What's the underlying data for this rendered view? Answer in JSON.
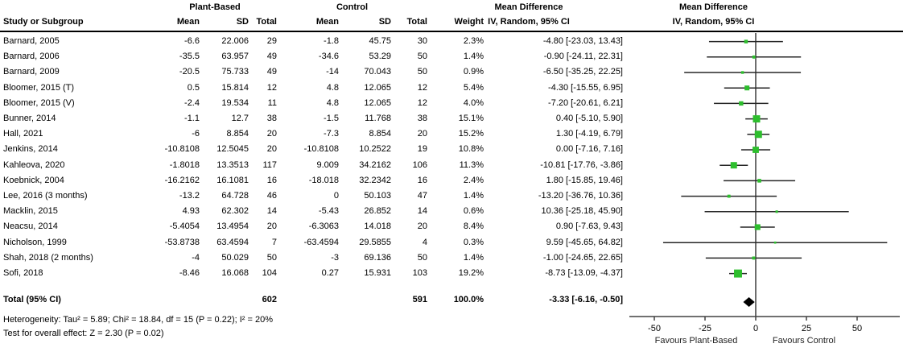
{
  "table": {
    "group_headers": {
      "plant_based": "Plant-Based",
      "control": "Control",
      "mean_diff_col": "Mean Difference",
      "mean_diff_plot": "Mean Difference"
    },
    "col_headers": {
      "study": "Study or Subgroup",
      "mean1": "Mean",
      "sd1": "SD",
      "total1": "Total",
      "mean2": "Mean",
      "sd2": "SD",
      "total2": "Total",
      "weight": "Weight",
      "iv_random_col": "IV, Random, 95% CI",
      "iv_random_plot": "IV, Random, 95% CI"
    },
    "rows": [
      {
        "study": "Barnard, 2005",
        "mean1": "-6.6",
        "sd1": "22.006",
        "total1": "29",
        "mean2": "-1.8",
        "sd2": "45.75",
        "total2": "30",
        "weight": "2.3%",
        "ci": "-4.80 [-23.03, 13.43]"
      },
      {
        "study": "Barnard, 2006",
        "mean1": "-35.5",
        "sd1": "63.957",
        "total1": "49",
        "mean2": "-34.6",
        "sd2": "53.29",
        "total2": "50",
        "weight": "1.4%",
        "ci": "-0.90 [-24.11, 22.31]"
      },
      {
        "study": "Barnard, 2009",
        "mean1": "-20.5",
        "sd1": "75.733",
        "total1": "49",
        "mean2": "-14",
        "sd2": "70.043",
        "total2": "50",
        "weight": "0.9%",
        "ci": "-6.50 [-35.25, 22.25]"
      },
      {
        "study": "Bloomer, 2015 (T)",
        "mean1": "0.5",
        "sd1": "15.814",
        "total1": "12",
        "mean2": "4.8",
        "sd2": "12.065",
        "total2": "12",
        "weight": "5.4%",
        "ci": "-4.30 [-15.55, 6.95]"
      },
      {
        "study": "Bloomer, 2015 (V)",
        "mean1": "-2.4",
        "sd1": "19.534",
        "total1": "11",
        "mean2": "4.8",
        "sd2": "12.065",
        "total2": "12",
        "weight": "4.0%",
        "ci": "-7.20 [-20.61, 6.21]"
      },
      {
        "study": "Bunner, 2014",
        "mean1": "-1.1",
        "sd1": "12.7",
        "total1": "38",
        "mean2": "-1.5",
        "sd2": "11.768",
        "total2": "38",
        "weight": "15.1%",
        "ci": "0.40 [-5.10, 5.90]"
      },
      {
        "study": "Hall, 2021",
        "mean1": "-6",
        "sd1": "8.854",
        "total1": "20",
        "mean2": "-7.3",
        "sd2": "8.854",
        "total2": "20",
        "weight": "15.2%",
        "ci": "1.30 [-4.19, 6.79]"
      },
      {
        "study": "Jenkins, 2014",
        "mean1": "-10.8108",
        "sd1": "12.5045",
        "total1": "20",
        "mean2": "-10.8108",
        "sd2": "10.2522",
        "total2": "19",
        "weight": "10.8%",
        "ci": "0.00 [-7.16, 7.16]"
      },
      {
        "study": "Kahleova, 2020",
        "mean1": "-1.8018",
        "sd1": "13.3513",
        "total1": "117",
        "mean2": "9.009",
        "sd2": "34.2162",
        "total2": "106",
        "weight": "11.3%",
        "ci": "-10.81 [-17.76, -3.86]"
      },
      {
        "study": "Koebnick, 2004",
        "mean1": "-16.2162",
        "sd1": "16.1081",
        "total1": "16",
        "mean2": "-18.018",
        "sd2": "32.2342",
        "total2": "16",
        "weight": "2.4%",
        "ci": "1.80 [-15.85, 19.46]"
      },
      {
        "study": "Lee, 2016 (3 months)",
        "mean1": "-13.2",
        "sd1": "64.728",
        "total1": "46",
        "mean2": "0",
        "sd2": "50.103",
        "total2": "47",
        "weight": "1.4%",
        "ci": "-13.20 [-36.76, 10.36]"
      },
      {
        "study": "Macklin, 2015",
        "mean1": "4.93",
        "sd1": "62.302",
        "total1": "14",
        "mean2": "-5.43",
        "sd2": "26.852",
        "total2": "14",
        "weight": "0.6%",
        "ci": "10.36 [-25.18, 45.90]"
      },
      {
        "study": "Neacsu, 2014",
        "mean1": "-5.4054",
        "sd1": "13.4954",
        "total1": "20",
        "mean2": "-6.3063",
        "sd2": "14.018",
        "total2": "20",
        "weight": "8.4%",
        "ci": "0.90 [-7.63, 9.43]"
      },
      {
        "study": "Nicholson, 1999",
        "mean1": "-53.8738",
        "sd1": "63.4594",
        "total1": "7",
        "mean2": "-63.4594",
        "sd2": "29.5855",
        "total2": "4",
        "weight": "0.3%",
        "ci": "9.59 [-45.65, 64.82]"
      },
      {
        "study": "Shah, 2018 (2 months)",
        "mean1": "-4",
        "sd1": "50.029",
        "total1": "50",
        "mean2": "-3",
        "sd2": "69.136",
        "total2": "50",
        "weight": "1.4%",
        "ci": "-1.00 [-24.65, 22.65]"
      },
      {
        "study": "Sofi, 2018",
        "mean1": "-8.46",
        "sd1": "16.068",
        "total1": "104",
        "mean2": "0.27",
        "sd2": "15.931",
        "total2": "103",
        "weight": "19.2%",
        "ci": "-8.73 [-13.09, -4.37]"
      }
    ],
    "total_row": {
      "label": "Total (95% CI)",
      "total1": "602",
      "total2": "591",
      "weight": "100.0%",
      "ci": "-3.33 [-6.16, -0.50]"
    },
    "footnotes": {
      "heterogeneity": "Heterogeneity: Tau² = 5.89; Chi² = 18.84, df = 15 (P = 0.22); I² = 20%",
      "overall_effect": "Test for overall effect: Z = 2.30 (P = 0.02)"
    }
  },
  "chart_data": {
    "type": "forest",
    "title": "Mean Difference  IV, Random, 95% CI",
    "xlim": [
      -62,
      72
    ],
    "x_ticks": [
      -50,
      -25,
      0,
      25,
      50
    ],
    "x_tick_labels": [
      "-50",
      "-25",
      "0",
      "25",
      "50"
    ],
    "favours_left": "Favours Plant-Based",
    "favours_right": "Favours Control",
    "zero_line_x": 0,
    "studies": [
      {
        "name": "Barnard, 2005",
        "md": -4.8,
        "lo": -23.03,
        "hi": 13.43,
        "weight": 2.3
      },
      {
        "name": "Barnard, 2006",
        "md": -0.9,
        "lo": -24.11,
        "hi": 22.31,
        "weight": 1.4
      },
      {
        "name": "Barnard, 2009",
        "md": -6.5,
        "lo": -35.25,
        "hi": 22.25,
        "weight": 0.9
      },
      {
        "name": "Bloomer, 2015 (T)",
        "md": -4.3,
        "lo": -15.55,
        "hi": 6.95,
        "weight": 5.4
      },
      {
        "name": "Bloomer, 2015 (V)",
        "md": -7.2,
        "lo": -20.61,
        "hi": 6.21,
        "weight": 4.0
      },
      {
        "name": "Bunner, 2014",
        "md": 0.4,
        "lo": -5.1,
        "hi": 5.9,
        "weight": 15.1
      },
      {
        "name": "Hall, 2021",
        "md": 1.3,
        "lo": -4.19,
        "hi": 6.79,
        "weight": 15.2
      },
      {
        "name": "Jenkins, 2014",
        "md": 0.0,
        "lo": -7.16,
        "hi": 7.16,
        "weight": 10.8
      },
      {
        "name": "Kahleova, 2020",
        "md": -10.81,
        "lo": -17.76,
        "hi": -3.86,
        "weight": 11.3
      },
      {
        "name": "Koebnick, 2004",
        "md": 1.8,
        "lo": -15.85,
        "hi": 19.46,
        "weight": 2.4
      },
      {
        "name": "Lee, 2016 (3 months)",
        "md": -13.2,
        "lo": -36.76,
        "hi": 10.36,
        "weight": 1.4
      },
      {
        "name": "Macklin, 2015",
        "md": 10.36,
        "lo": -25.18,
        "hi": 45.9,
        "weight": 0.6
      },
      {
        "name": "Neacsu, 2014",
        "md": 0.9,
        "lo": -7.63,
        "hi": 9.43,
        "weight": 8.4
      },
      {
        "name": "Nicholson, 1999",
        "md": 9.59,
        "lo": -45.65,
        "hi": 64.82,
        "weight": 0.3
      },
      {
        "name": "Shah, 2018 (2 months)",
        "md": -1.0,
        "lo": -24.65,
        "hi": 22.65,
        "weight": 1.4
      },
      {
        "name": "Sofi, 2018",
        "md": -8.73,
        "lo": -13.09,
        "hi": -4.37,
        "weight": 19.2
      }
    ],
    "total": {
      "name": "Total (95% CI)",
      "md": -3.33,
      "lo": -6.16,
      "hi": -0.5,
      "weight": 100.0
    },
    "colors": {
      "marker": "#2dbe2d",
      "ci_line": "#262626",
      "zero_line": "#6e6e6e",
      "axis": "#404040",
      "diamond": "#000000"
    }
  }
}
